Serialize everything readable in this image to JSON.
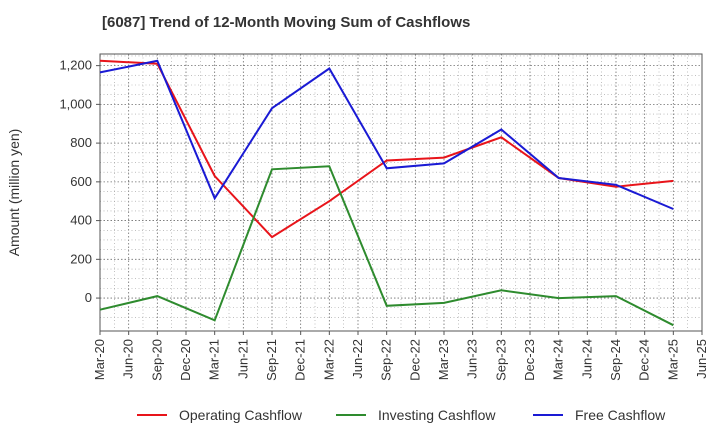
{
  "chart_data": {
    "type": "line",
    "title": "[6087]  Trend of 12-Month Moving Sum of Cashflows",
    "ylabel": "Amount (million yen)",
    "xlabel": "",
    "ylim": [
      -170,
      1260
    ],
    "yticks": [
      0,
      200,
      400,
      600,
      800,
      1000,
      1200
    ],
    "ytick_labels": [
      "0",
      "200",
      "400",
      "600",
      "800",
      "1,000",
      "1,200"
    ],
    "x_tick_labels": [
      "Mar-20",
      "Jun-20",
      "Sep-20",
      "Dec-20",
      "Mar-21",
      "Jun-21",
      "Sep-21",
      "Dec-21",
      "Mar-22",
      "Jun-22",
      "Sep-22",
      "Dec-22",
      "Mar-23",
      "Jun-23",
      "Sep-23",
      "Dec-23",
      "Mar-24",
      "Jun-24",
      "Sep-24",
      "Dec-24",
      "Mar-25",
      "Jun-25"
    ],
    "grid": true,
    "legend_position": "bottom",
    "series": [
      {
        "name": "Operating Cashflow",
        "color": "#e8141a",
        "x": [
          "Mar-20",
          "Sep-20",
          "Mar-21",
          "Sep-21",
          "Mar-22",
          "Sep-22",
          "Mar-23",
          "Sep-23",
          "Mar-24",
          "Sep-24",
          "Mar-25"
        ],
        "values": [
          1225,
          1210,
          630,
          315,
          500,
          710,
          725,
          830,
          620,
          575,
          605
        ]
      },
      {
        "name": "Investing Cashflow",
        "color": "#2e8b2e",
        "x": [
          "Mar-20",
          "Sep-20",
          "Mar-21",
          "Sep-21",
          "Mar-22",
          "Sep-22",
          "Mar-23",
          "Sep-23",
          "Mar-24",
          "Sep-24",
          "Mar-25"
        ],
        "values": [
          -60,
          10,
          -115,
          665,
          680,
          -40,
          -25,
          40,
          0,
          10,
          -140
        ]
      },
      {
        "name": "Free Cashflow",
        "color": "#1a1ad4",
        "x": [
          "Mar-20",
          "Sep-20",
          "Mar-21",
          "Sep-21",
          "Mar-22",
          "Sep-22",
          "Mar-23",
          "Sep-23",
          "Mar-24",
          "Sep-24",
          "Mar-25"
        ],
        "values": [
          1165,
          1225,
          515,
          980,
          1185,
          670,
          695,
          870,
          620,
          585,
          460
        ]
      }
    ]
  }
}
